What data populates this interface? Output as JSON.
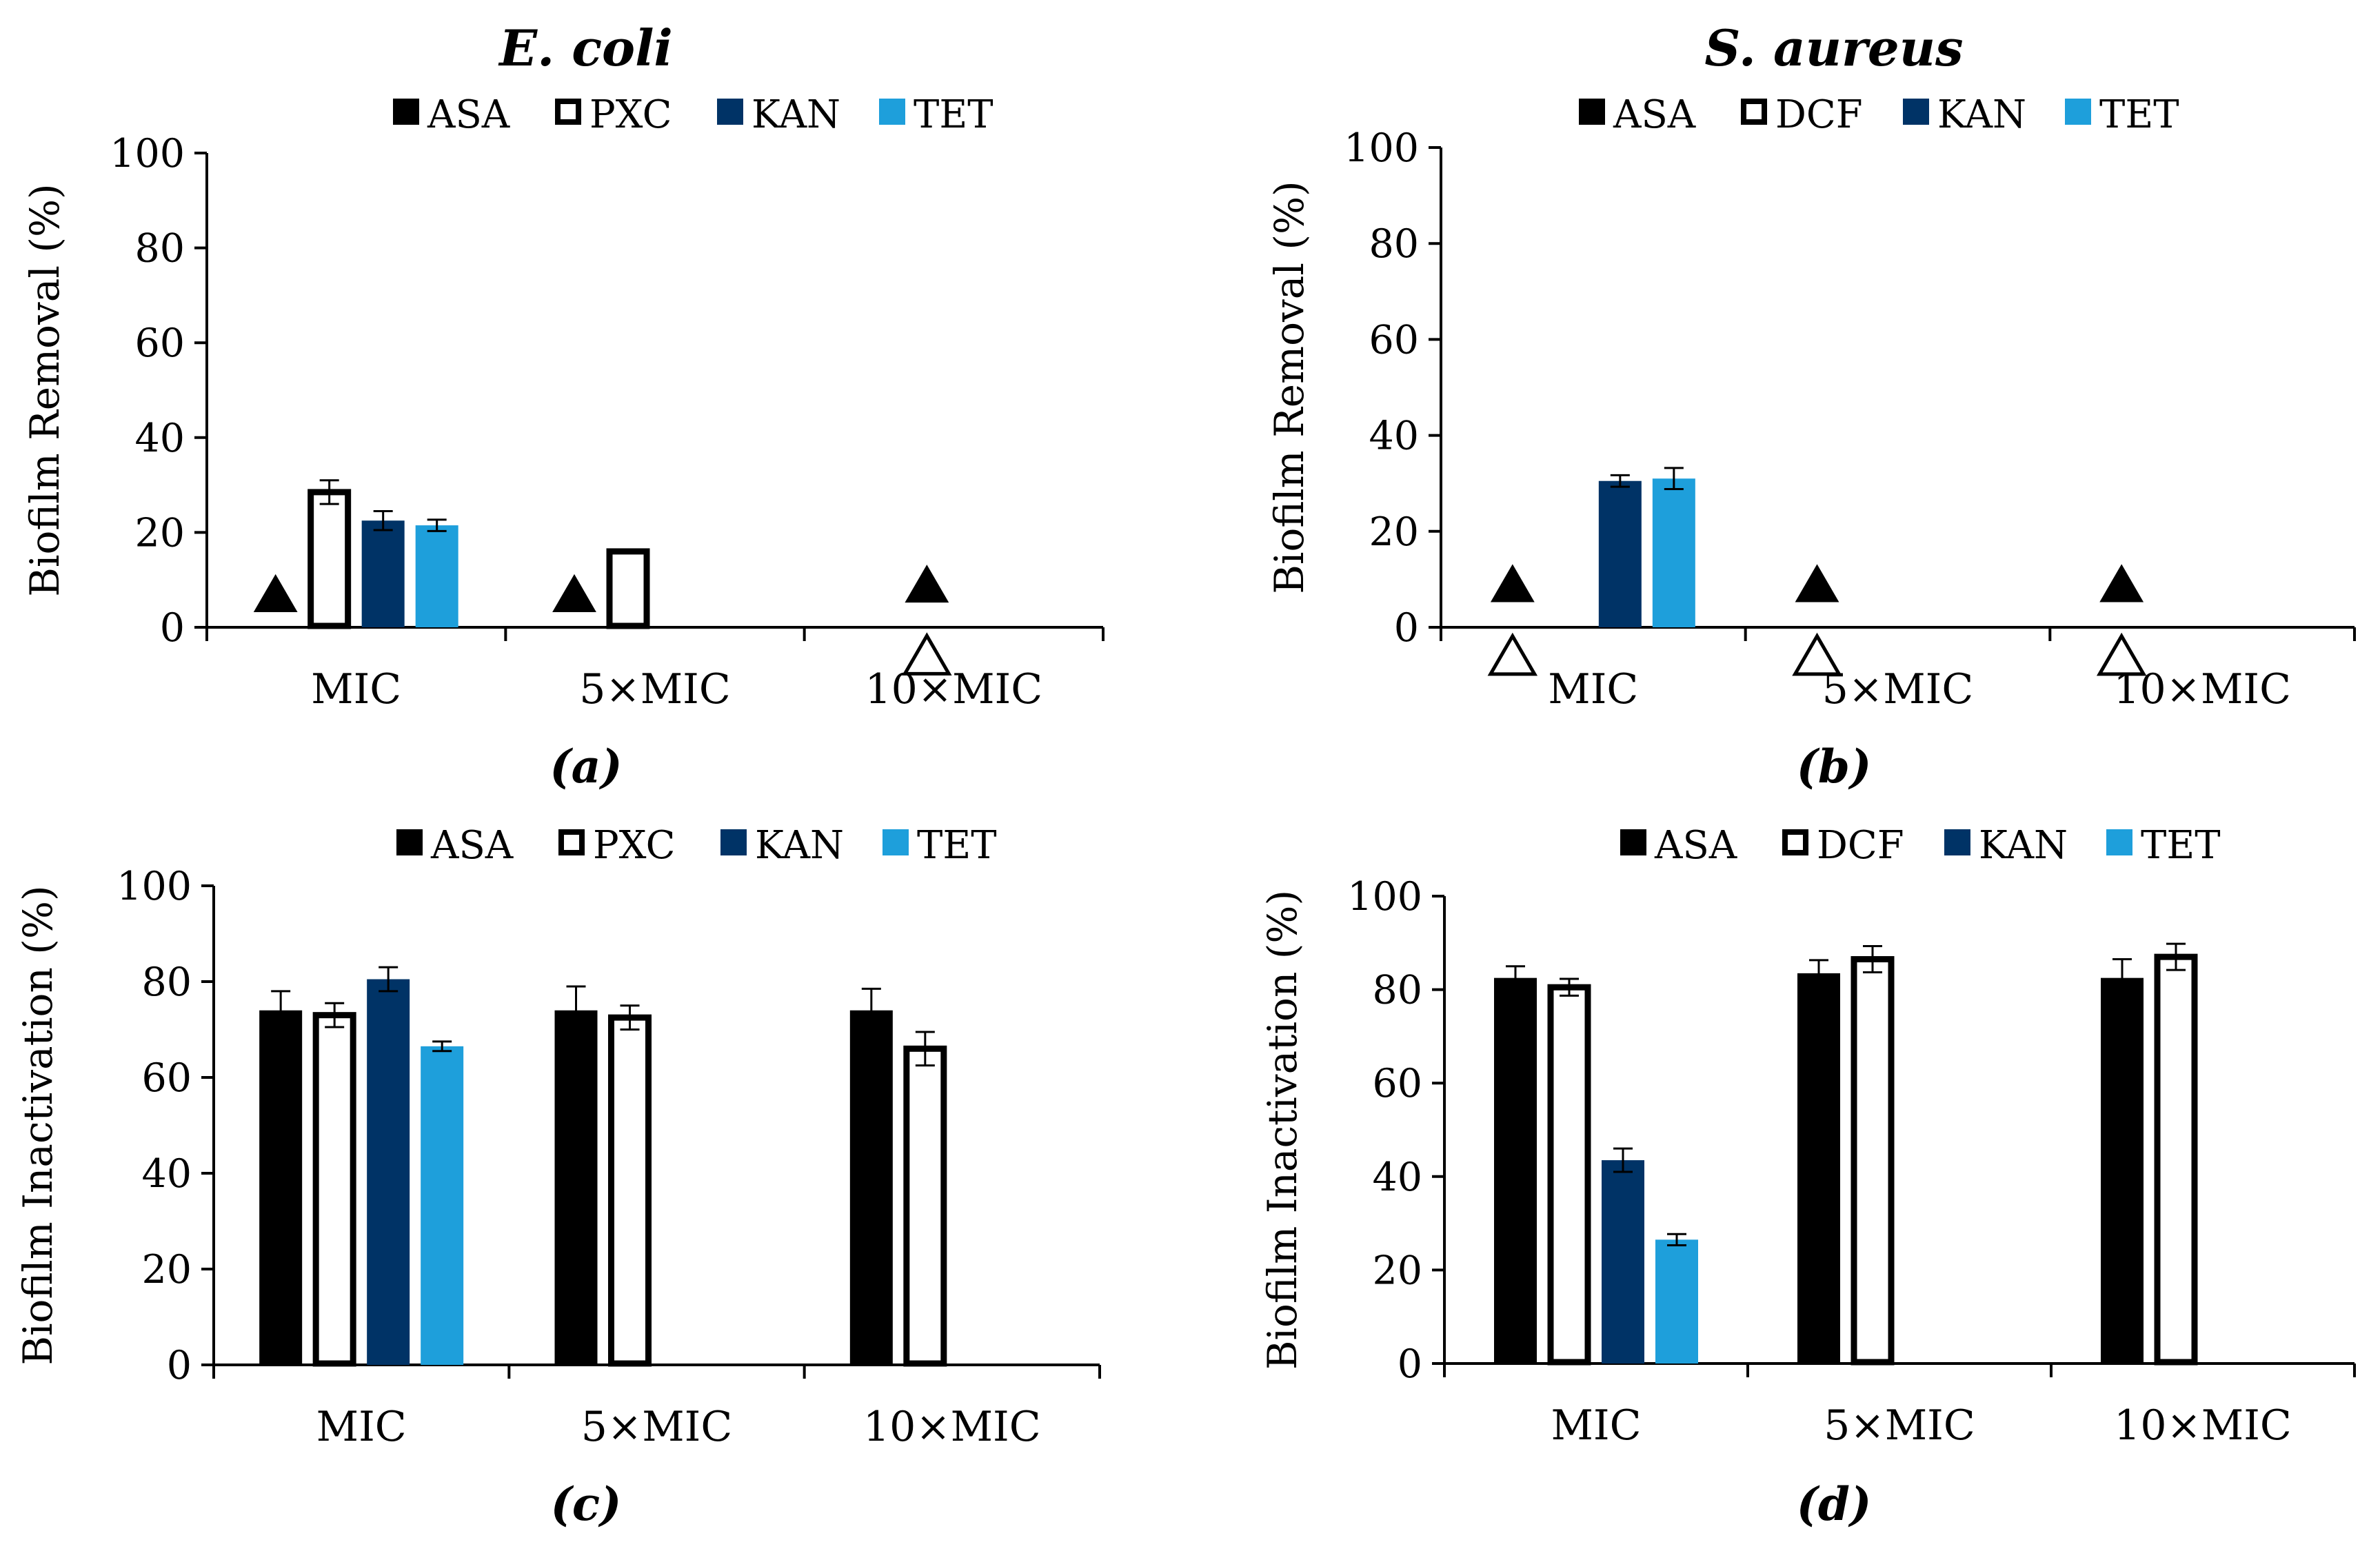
{
  "figure": {
    "species_left": "E. coli",
    "species_right": "S. aureus"
  },
  "colors": {
    "ASA": "#000000",
    "PXC": "#ffffff",
    "DCF": "#ffffff",
    "KAN": "#003366",
    "TET": "#1e9fdb",
    "outline": "#000000"
  },
  "chart_data": [
    {
      "id": "a",
      "type": "bar",
      "panel_label": "(a)",
      "title": "E. coli",
      "ylabel": "Biofilm Removal (%)",
      "xlabel": "",
      "ylim": [
        0,
        100
      ],
      "yticks": [
        "0",
        "20",
        "40",
        "60",
        "80",
        "100"
      ],
      "categories": [
        "MIC",
        "5×MIC",
        "10×MIC"
      ],
      "legend": [
        "ASA",
        "PXC",
        "KAN",
        "TET"
      ],
      "series": [
        {
          "name": "ASA",
          "values": [
            null,
            null,
            null
          ],
          "errors": [
            null,
            null,
            null
          ]
        },
        {
          "name": "PXC",
          "values": [
            28.5,
            16,
            null
          ],
          "errors": [
            2.5,
            0,
            null
          ]
        },
        {
          "name": "KAN",
          "values": [
            22.5,
            null,
            null
          ],
          "errors": [
            2,
            null,
            null
          ]
        },
        {
          "name": "TET",
          "values": [
            21.5,
            null,
            null
          ],
          "errors": [
            1.2,
            null,
            null
          ]
        }
      ],
      "markers": [
        {
          "symbol": "▲",
          "category": 0,
          "series": 0,
          "value": 7
        },
        {
          "symbol": "▲",
          "category": 1,
          "series": 0,
          "value": 7
        },
        {
          "symbol": "▲",
          "category": 2,
          "series": 1,
          "value": 9
        },
        {
          "symbol": "△",
          "category": 2,
          "series": 1,
          "value": -6
        }
      ]
    },
    {
      "id": "b",
      "type": "bar",
      "panel_label": "(b)",
      "title": "S. aureus",
      "ylabel": "Biofilm Removal (%)",
      "xlabel": "",
      "ylim": [
        0,
        100
      ],
      "yticks": [
        "0",
        "20",
        "40",
        "60",
        "80",
        "100"
      ],
      "categories": [
        "MIC",
        "5×MIC",
        "10×MIC"
      ],
      "legend": [
        "ASA",
        "DCF",
        "KAN",
        "TET"
      ],
      "series": [
        {
          "name": "ASA",
          "values": [
            null,
            null,
            null
          ],
          "errors": [
            null,
            null,
            null
          ]
        },
        {
          "name": "DCF",
          "values": [
            null,
            null,
            null
          ],
          "errors": [
            null,
            null,
            null
          ]
        },
        {
          "name": "KAN",
          "values": [
            30.5,
            null,
            null
          ],
          "errors": [
            1.2,
            null,
            null
          ]
        },
        {
          "name": "TET",
          "values": [
            31,
            null,
            null
          ],
          "errors": [
            2.2,
            null,
            null
          ]
        }
      ],
      "markers": [
        {
          "symbol": "▲",
          "category": 0,
          "series": 0,
          "value": 9
        },
        {
          "symbol": "△",
          "category": 0,
          "series": 0,
          "value": -6
        },
        {
          "symbol": "▲",
          "category": 1,
          "series": 0,
          "value": 9
        },
        {
          "symbol": "△",
          "category": 1,
          "series": 0,
          "value": -6
        },
        {
          "symbol": "▲",
          "category": 2,
          "series": 0,
          "value": 9
        },
        {
          "symbol": "△",
          "category": 2,
          "series": 0,
          "value": -6
        }
      ]
    },
    {
      "id": "c",
      "type": "bar",
      "panel_label": "(c)",
      "title": "",
      "ylabel": "Biofilm Inactivation (%)",
      "xlabel": "",
      "ylim": [
        0,
        100
      ],
      "yticks": [
        "0",
        "20",
        "40",
        "60",
        "80",
        "100"
      ],
      "categories": [
        "MIC",
        "5×MIC",
        "10×MIC"
      ],
      "legend": [
        "ASA",
        "PXC",
        "KAN",
        "TET"
      ],
      "series": [
        {
          "name": "ASA",
          "values": [
            74,
            74,
            74
          ],
          "errors": [
            4,
            5,
            4.5
          ]
        },
        {
          "name": "PXC",
          "values": [
            73,
            72.5,
            66
          ],
          "errors": [
            2.5,
            2.5,
            3.5
          ]
        },
        {
          "name": "KAN",
          "values": [
            80.5,
            null,
            null
          ],
          "errors": [
            2.5,
            null,
            null
          ]
        },
        {
          "name": "TET",
          "values": [
            66.5,
            null,
            null
          ],
          "errors": [
            1,
            null,
            null
          ]
        }
      ],
      "markers": []
    },
    {
      "id": "d",
      "type": "bar",
      "panel_label": "(d)",
      "title": "",
      "ylabel": "Biofilm Inactivation (%)",
      "xlabel": "",
      "ylim": [
        0,
        100
      ],
      "yticks": [
        "0",
        "20",
        "40",
        "60",
        "80",
        "100"
      ],
      "categories": [
        "MIC",
        "5×MIC",
        "10×MIC"
      ],
      "legend": [
        "ASA",
        "DCF",
        "KAN",
        "TET"
      ],
      "series": [
        {
          "name": "ASA",
          "values": [
            82.5,
            83.5,
            82.5
          ],
          "errors": [
            2.5,
            2.8,
            4
          ]
        },
        {
          "name": "DCF",
          "values": [
            80.5,
            86.5,
            87
          ],
          "errors": [
            1.8,
            2.8,
            2.8
          ]
        },
        {
          "name": "KAN",
          "values": [
            43.5,
            null,
            null
          ],
          "errors": [
            2.5,
            null,
            null
          ]
        },
        {
          "name": "TET",
          "values": [
            26.5,
            null,
            null
          ],
          "errors": [
            1.2,
            null,
            null
          ]
        }
      ],
      "markers": []
    }
  ]
}
